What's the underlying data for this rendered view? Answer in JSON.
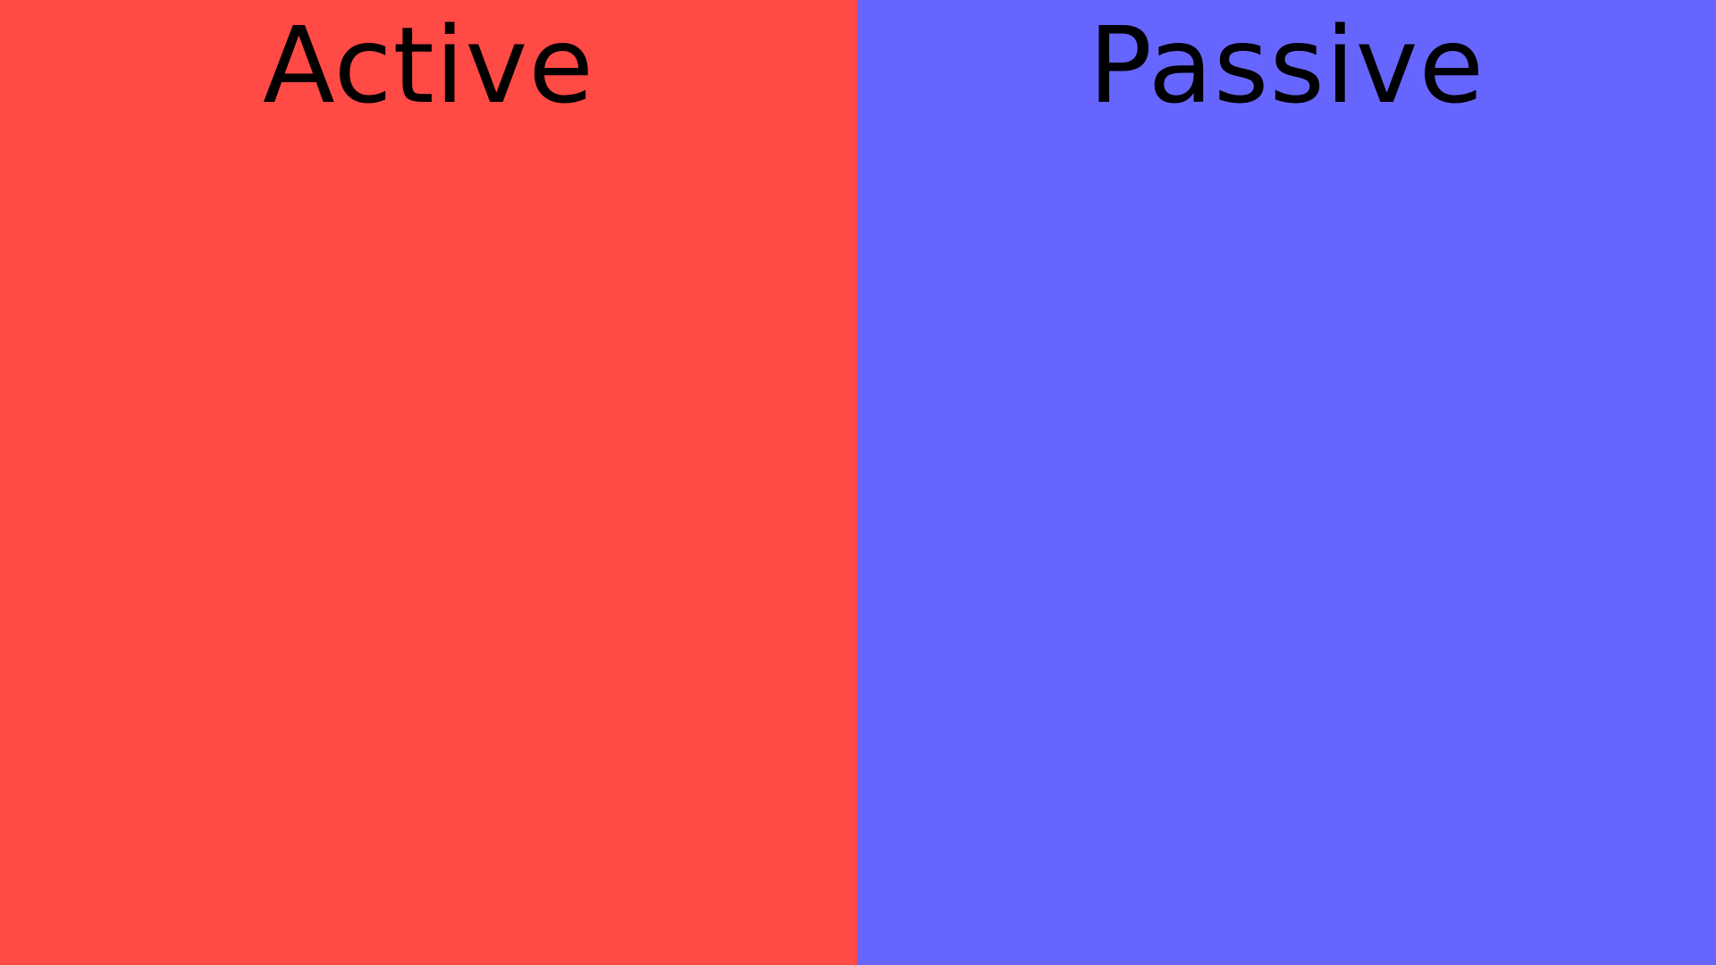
{
  "slide": {
    "left_panel": {
      "title": "Active",
      "color": "#ff4a45"
    },
    "right_panel": {
      "title": "Passive",
      "color": "#6666ff"
    }
  }
}
